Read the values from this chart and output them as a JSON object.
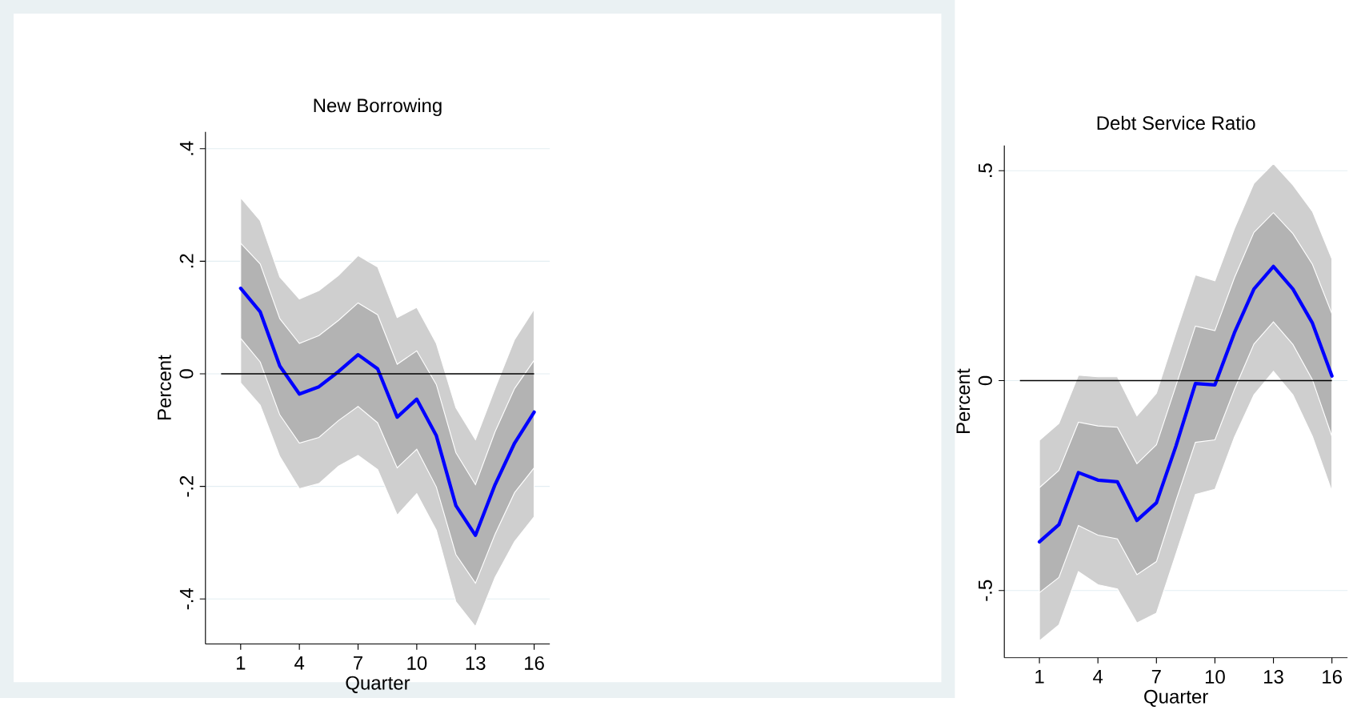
{
  "chart_data": [
    {
      "type": "line",
      "title": "New Borrowing",
      "xlabel": "Quarter",
      "ylabel": "Percent",
      "x": [
        1,
        2,
        3,
        4,
        5,
        6,
        7,
        8,
        9,
        10,
        11,
        12,
        13,
        14,
        15,
        16
      ],
      "xlim": [
        -0.8,
        16.8
      ],
      "xticks": [
        1,
        4,
        7,
        10,
        13,
        16
      ],
      "ylim": [
        -0.48,
        0.43
      ],
      "yticks": [
        {
          "value": -0.4,
          "label": "-.4"
        },
        {
          "value": -0.2,
          "label": "-.2"
        },
        0,
        {
          "value": 0.2,
          "label": ".2"
        },
        {
          "value": 0.4,
          "label": ".4"
        }
      ],
      "grid": "y",
      "ref_lines": [
        {
          "axis": "y",
          "value": 0,
          "color": "#000000"
        }
      ],
      "series": [
        {
          "color": "#cfcfcf",
          "values": [
            null,
            null,
            null,
            null,
            null,
            null,
            null,
            null,
            null,
            null,
            null,
            null,
            null,
            null,
            null,
            null
          ],
          "lower": [
            -0.016,
            -0.056,
            -0.147,
            -0.204,
            -0.195,
            -0.164,
            -0.145,
            -0.17,
            -0.251,
            -0.213,
            -0.278,
            -0.405,
            -0.449,
            -0.362,
            -0.298,
            -0.254
          ],
          "upper": [
            0.313,
            0.272,
            0.172,
            0.133,
            0.148,
            0.175,
            0.21,
            0.19,
            0.1,
            0.118,
            0.054,
            -0.06,
            -0.117,
            -0.026,
            0.061,
            0.115
          ]
        },
        {
          "color": "#b3b3b3",
          "values": [
            null,
            null,
            null,
            null,
            null,
            null,
            null,
            null,
            null,
            null,
            null,
            null,
            null,
            null,
            null,
            null
          ],
          "lower": [
            0.063,
            0.021,
            -0.073,
            -0.123,
            -0.113,
            -0.083,
            -0.058,
            -0.087,
            -0.167,
            -0.134,
            -0.201,
            -0.321,
            -0.372,
            -0.285,
            -0.211,
            -0.167
          ],
          "upper": [
            0.232,
            0.195,
            0.098,
            0.054,
            0.068,
            0.095,
            0.126,
            0.105,
            0.017,
            0.041,
            -0.019,
            -0.14,
            -0.197,
            -0.103,
            -0.026,
            0.024
          ]
        },
        {
          "color": "#0000ff",
          "values": [
            0.152,
            0.11,
            0.014,
            -0.036,
            -0.023,
            0.004,
            0.034,
            0.009,
            -0.077,
            -0.045,
            -0.11,
            -0.234,
            -0.287,
            -0.197,
            -0.123,
            -0.068
          ]
        }
      ]
    },
    {
      "type": "line",
      "title": "Debt Service Ratio",
      "xlabel": "Quarter",
      "ylabel": "Percent",
      "x": [
        1,
        2,
        3,
        4,
        5,
        6,
        7,
        8,
        9,
        10,
        11,
        12,
        13,
        14,
        15,
        16
      ],
      "xlim": [
        -0.8,
        16.8
      ],
      "xticks": [
        1,
        4,
        7,
        10,
        13,
        16
      ],
      "ylim": [
        -0.66,
        0.56
      ],
      "yticks": [
        {
          "value": -0.5,
          "label": "-.5"
        },
        0,
        {
          "value": 0.5,
          "label": ".5"
        }
      ],
      "grid": "y",
      "ref_lines": [
        {
          "axis": "y",
          "value": 0,
          "color": "#000000"
        }
      ],
      "series": [
        {
          "color": "#cfcfcf",
          "values": [
            null,
            null,
            null,
            null,
            null,
            null,
            null,
            null,
            null,
            null,
            null,
            null,
            null,
            null,
            null,
            null
          ],
          "lower": [
            -0.62,
            -0.582,
            -0.455,
            -0.486,
            -0.496,
            -0.577,
            -0.554,
            -0.413,
            -0.271,
            -0.259,
            -0.135,
            -0.034,
            0.022,
            -0.034,
            -0.133,
            -0.264
          ],
          "upper": [
            -0.142,
            -0.102,
            0.013,
            0.009,
            0.009,
            -0.084,
            -0.03,
            0.114,
            0.252,
            0.238,
            0.362,
            0.47,
            0.517,
            0.466,
            0.403,
            0.29
          ]
        },
        {
          "color": "#b3b3b3",
          "values": [
            null,
            null,
            null,
            null,
            null,
            null,
            null,
            null,
            null,
            null,
            null,
            null,
            null,
            null,
            null,
            null
          ],
          "lower": [
            -0.505,
            -0.469,
            -0.345,
            -0.368,
            -0.377,
            -0.462,
            -0.431,
            -0.286,
            -0.147,
            -0.141,
            -0.021,
            0.087,
            0.14,
            0.086,
            0.002,
            -0.133
          ],
          "upper": [
            -0.255,
            -0.214,
            -0.099,
            -0.108,
            -0.111,
            -0.198,
            -0.153,
            -0.012,
            0.13,
            0.119,
            0.245,
            0.353,
            0.4,
            0.35,
            0.277,
            0.159
          ]
        },
        {
          "color": "#0000ff",
          "values": [
            -0.384,
            -0.343,
            -0.219,
            -0.237,
            -0.241,
            -0.333,
            -0.291,
            -0.156,
            -0.007,
            -0.01,
            0.114,
            0.218,
            0.272,
            0.218,
            0.137,
            0.011
          ]
        }
      ]
    }
  ]
}
